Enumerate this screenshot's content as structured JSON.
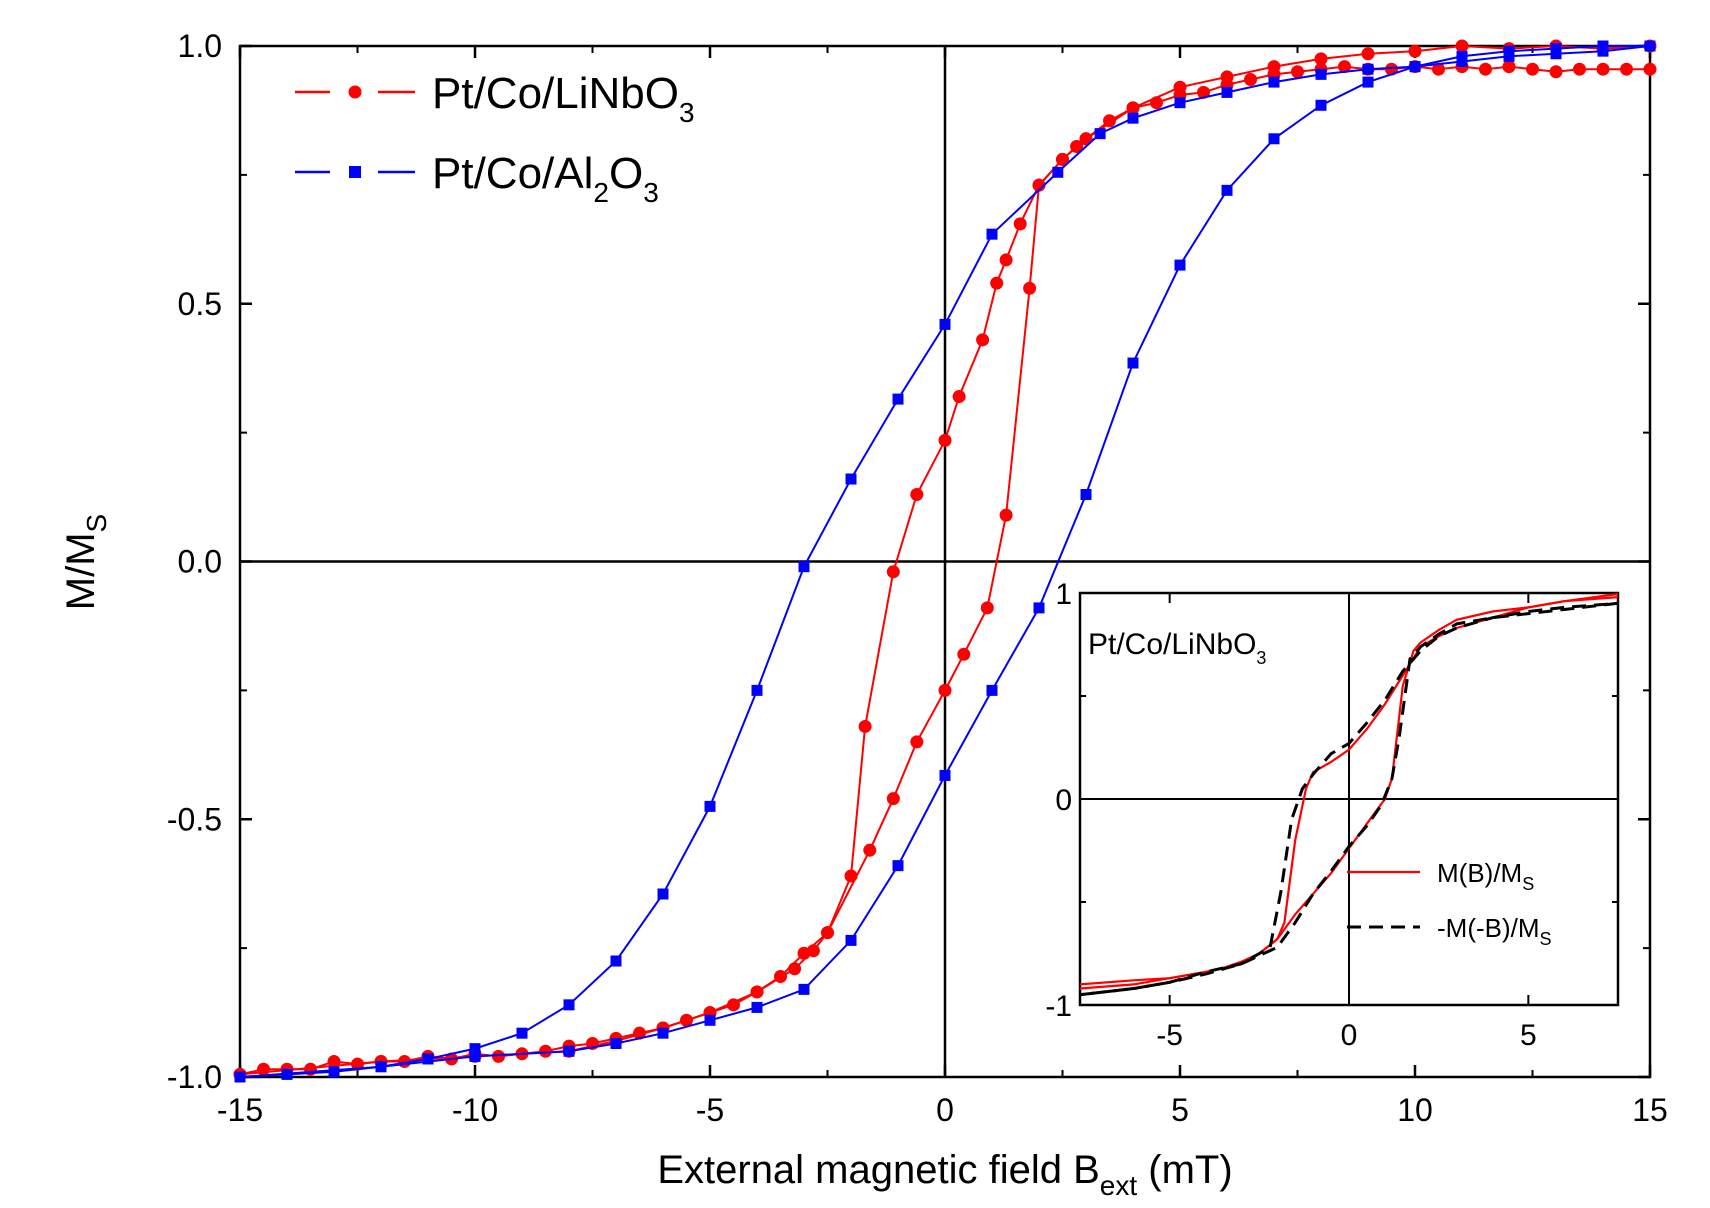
{
  "chart_data": {
    "type": "line",
    "xlabel_main": "External magnetic field B",
    "xlabel_sub": "ext",
    "xlabel_unit": " (mT)",
    "ylabel_main": "M/M",
    "ylabel_sub": "S",
    "xlim": [
      -15,
      15
    ],
    "ylim": [
      -1,
      1
    ],
    "xticks": [
      "-15",
      "-10",
      "-5",
      "0",
      "5",
      "10",
      "15"
    ],
    "yticks": [
      "-1.0",
      "-0.5",
      "0.0",
      "0.5",
      "1.0"
    ],
    "legend": [
      {
        "p1": "Pt/Co/LiNbO",
        "s1": "3",
        "p2": ""
      },
      {
        "p1": "Pt/Co/Al",
        "s1": "2",
        "p2": "O",
        "s2": "3"
      }
    ],
    "series": [
      {
        "name": "Pt/Co/LiNbO3",
        "color": "#ff0000",
        "marker": "circle",
        "branch_down": [
          [
            15,
            0.955
          ],
          [
            14.5,
            0.955
          ],
          [
            14,
            0.955
          ],
          [
            13.5,
            0.955
          ],
          [
            13,
            0.95
          ],
          [
            12.5,
            0.955
          ],
          [
            12,
            0.96
          ],
          [
            11.5,
            0.955
          ],
          [
            11,
            0.96
          ],
          [
            10.5,
            0.955
          ],
          [
            10,
            0.96
          ],
          [
            9.5,
            0.955
          ],
          [
            9,
            0.955
          ],
          [
            8.5,
            0.96
          ],
          [
            8,
            0.955
          ],
          [
            7.5,
            0.95
          ],
          [
            7,
            0.945
          ],
          [
            6.5,
            0.935
          ],
          [
            6,
            0.925
          ],
          [
            5.5,
            0.91
          ],
          [
            5,
            0.905
          ],
          [
            4.5,
            0.89
          ],
          [
            4,
            0.88
          ],
          [
            3.5,
            0.855
          ],
          [
            3,
            0.82
          ],
          [
            2.8,
            0.805
          ],
          [
            2.5,
            0.78
          ],
          [
            2,
            0.73
          ],
          [
            1.6,
            0.655
          ],
          [
            1.3,
            0.585
          ],
          [
            1.1,
            0.54
          ],
          [
            0.8,
            0.43
          ],
          [
            0.3,
            0.32
          ],
          [
            0,
            0.235
          ],
          [
            -0.6,
            0.13
          ],
          [
            -1.1,
            -0.02
          ],
          [
            -1.7,
            -0.32
          ],
          [
            -2,
            -0.61
          ],
          [
            -2.5,
            -0.72
          ],
          [
            -3,
            -0.76
          ],
          [
            -3.5,
            -0.805
          ],
          [
            -4,
            -0.835
          ],
          [
            -4.5,
            -0.86
          ],
          [
            -5,
            -0.875
          ],
          [
            -5.5,
            -0.89
          ],
          [
            -6,
            -0.905
          ],
          [
            -6.5,
            -0.915
          ],
          [
            -7,
            -0.925
          ],
          [
            -7.5,
            -0.935
          ],
          [
            -8,
            -0.94
          ],
          [
            -8.5,
            -0.95
          ],
          [
            -9,
            -0.955
          ],
          [
            -9.5,
            -0.96
          ],
          [
            -10,
            -0.955
          ],
          [
            -10.5,
            -0.965
          ],
          [
            -11,
            -0.96
          ],
          [
            -11.5,
            -0.97
          ],
          [
            -12,
            -0.97
          ],
          [
            -12.5,
            -0.975
          ],
          [
            -13,
            -0.97
          ],
          [
            -13.5,
            -0.985
          ],
          [
            -14,
            -0.985
          ],
          [
            -14.5,
            -0.985
          ],
          [
            -15,
            -0.995
          ]
        ],
        "branch_up": [
          [
            -15,
            -0.995
          ],
          [
            -12,
            -0.97
          ],
          [
            -10,
            -0.96
          ],
          [
            -8,
            -0.95
          ],
          [
            -7,
            -0.93
          ],
          [
            -6,
            -0.905
          ],
          [
            -5,
            -0.875
          ],
          [
            -4,
            -0.835
          ],
          [
            -3.2,
            -0.79
          ],
          [
            -2.8,
            -0.755
          ],
          [
            -2.5,
            -0.72
          ],
          [
            -1.6,
            -0.56
          ],
          [
            -1.1,
            -0.46
          ],
          [
            -0.6,
            -0.35
          ],
          [
            0,
            -0.25
          ],
          [
            0.4,
            -0.18
          ],
          [
            0.9,
            -0.09
          ],
          [
            1.3,
            0.09
          ],
          [
            1.8,
            0.53
          ],
          [
            2,
            0.73
          ],
          [
            2.5,
            0.78
          ],
          [
            3,
            0.82
          ],
          [
            4,
            0.88
          ],
          [
            5,
            0.92
          ],
          [
            6,
            0.94
          ],
          [
            7,
            0.96
          ],
          [
            8,
            0.975
          ],
          [
            9,
            0.985
          ],
          [
            10,
            0.99
          ],
          [
            11,
            1.0
          ],
          [
            12,
            0.995
          ],
          [
            13,
            1.0
          ],
          [
            14,
            0.995
          ],
          [
            15,
            1.0
          ]
        ]
      },
      {
        "name": "Pt/Co/Al2O3",
        "color": "#0000ff",
        "marker": "square",
        "branch_down": [
          [
            15,
            1.0
          ],
          [
            14,
            0.99
          ],
          [
            13,
            0.985
          ],
          [
            12,
            0.98
          ],
          [
            11,
            0.97
          ],
          [
            10,
            0.96
          ],
          [
            9,
            0.955
          ],
          [
            8,
            0.945
          ],
          [
            7,
            0.93
          ],
          [
            6,
            0.91
          ],
          [
            5,
            0.89
          ],
          [
            4,
            0.86
          ],
          [
            3.3,
            0.83
          ],
          [
            2.4,
            0.755
          ],
          [
            1,
            0.635
          ],
          [
            0,
            0.46
          ],
          [
            -1,
            0.315
          ],
          [
            -2,
            0.16
          ],
          [
            -3,
            -0.01
          ],
          [
            -4,
            -0.25
          ],
          [
            -5,
            -0.475
          ],
          [
            -6,
            -0.645
          ],
          [
            -7,
            -0.775
          ],
          [
            -8,
            -0.86
          ],
          [
            -9,
            -0.915
          ],
          [
            -10,
            -0.945
          ],
          [
            -11,
            -0.965
          ],
          [
            -12,
            -0.98
          ],
          [
            -13,
            -0.99
          ],
          [
            -14,
            -0.995
          ],
          [
            -15,
            -1.0
          ]
        ],
        "branch_up": [
          [
            -15,
            -1.0
          ],
          [
            -12,
            -0.98
          ],
          [
            -10,
            -0.96
          ],
          [
            -8,
            -0.95
          ],
          [
            -7,
            -0.935
          ],
          [
            -6,
            -0.915
          ],
          [
            -5,
            -0.89
          ],
          [
            -4,
            -0.865
          ],
          [
            -3,
            -0.83
          ],
          [
            -2,
            -0.735
          ],
          [
            -1,
            -0.59
          ],
          [
            0,
            -0.415
          ],
          [
            1,
            -0.25
          ],
          [
            2,
            -0.09
          ],
          [
            3,
            0.13
          ],
          [
            4,
            0.385
          ],
          [
            5,
            0.575
          ],
          [
            6,
            0.72
          ],
          [
            7,
            0.82
          ],
          [
            8,
            0.885
          ],
          [
            9,
            0.93
          ],
          [
            10,
            0.96
          ],
          [
            11,
            0.98
          ],
          [
            12,
            0.99
          ],
          [
            13,
            0.995
          ],
          [
            14,
            1.0
          ],
          [
            15,
            1.0
          ]
        ]
      }
    ],
    "inset": {
      "title_main": "Pt/Co/LiNbO",
      "title_sub": "3",
      "xlim": [
        -7.5,
        7.5
      ],
      "ylim": [
        -1,
        1
      ],
      "xticks": [
        "-5",
        "0",
        "5"
      ],
      "yticks": [
        "-1",
        "0",
        "1"
      ],
      "legend": [
        {
          "main": "M(B)/M",
          "sub": "S"
        },
        {
          "main": "-M(-B)/M",
          "sub": "S"
        }
      ],
      "series": [
        {
          "name": "M(B)/Ms",
          "color": "#ff0000",
          "style": "solid",
          "points": [
            [
              7.5,
              0.995
            ],
            [
              6,
              0.96
            ],
            [
              5,
              0.93
            ],
            [
              4,
              0.91
            ],
            [
              3,
              0.87
            ],
            [
              2.5,
              0.82
            ],
            [
              2,
              0.76
            ],
            [
              1.8,
              0.72
            ],
            [
              1.5,
              0.55
            ],
            [
              1.2,
              0.1
            ],
            [
              1,
              0.0
            ],
            [
              0.5,
              -0.12
            ],
            [
              0,
              -0.24
            ],
            [
              -0.5,
              -0.36
            ],
            [
              -1,
              -0.46
            ],
            [
              -1.5,
              -0.56
            ],
            [
              -2,
              -0.68
            ],
            [
              -2.5,
              -0.75
            ],
            [
              -3,
              -0.79
            ],
            [
              -3.5,
              -0.82
            ],
            [
              -4,
              -0.84
            ],
            [
              -5,
              -0.87
            ],
            [
              -6,
              -0.88
            ],
            [
              -7.5,
              -0.9
            ]
          ],
          "points2": [
            [
              -7.5,
              -0.92
            ],
            [
              -6,
              -0.9
            ],
            [
              -5,
              -0.87
            ],
            [
              -4,
              -0.84
            ],
            [
              -3,
              -0.8
            ],
            [
              -2.5,
              -0.75
            ],
            [
              -2,
              -0.68
            ],
            [
              -1.8,
              -0.6
            ],
            [
              -1.5,
              -0.2
            ],
            [
              -1.2,
              0.05
            ],
            [
              -1,
              0.13
            ],
            [
              -0.5,
              0.18
            ],
            [
              0,
              0.24
            ],
            [
              0.5,
              0.34
            ],
            [
              1,
              0.46
            ],
            [
              1.5,
              0.6
            ],
            [
              2,
              0.74
            ],
            [
              2.5,
              0.79
            ],
            [
              3,
              0.83
            ],
            [
              4,
              0.88
            ],
            [
              5,
              0.93
            ],
            [
              6,
              0.96
            ],
            [
              7.5,
              0.98
            ]
          ]
        },
        {
          "name": "-M(-B)/Ms",
          "color": "#000000",
          "style": "dashed",
          "points": [
            [
              7.5,
              0.95
            ],
            [
              6,
              0.92
            ],
            [
              5,
              0.9
            ],
            [
              4,
              0.88
            ],
            [
              3,
              0.85
            ],
            [
              2.5,
              0.8
            ],
            [
              2,
              0.74
            ],
            [
              1.7,
              0.68
            ],
            [
              1.4,
              0.3
            ],
            [
              1.2,
              0.1
            ],
            [
              0.9,
              -0.03
            ],
            [
              0.5,
              -0.13
            ],
            [
              0,
              -0.23
            ],
            [
              -0.5,
              -0.35
            ],
            [
              -1,
              -0.46
            ],
            [
              -1.5,
              -0.6
            ],
            [
              -2,
              -0.72
            ],
            [
              -2.5,
              -0.76
            ],
            [
              -3,
              -0.8
            ],
            [
              -4,
              -0.85
            ],
            [
              -5,
              -0.89
            ],
            [
              -6,
              -0.92
            ],
            [
              -7.5,
              -0.95
            ]
          ],
          "points2": [
            [
              -7.5,
              -0.95
            ],
            [
              -6,
              -0.92
            ],
            [
              -5,
              -0.89
            ],
            [
              -4,
              -0.84
            ],
            [
              -3,
              -0.8
            ],
            [
              -2.2,
              -0.72
            ],
            [
              -1.9,
              -0.45
            ],
            [
              -1.6,
              -0.1
            ],
            [
              -1.3,
              0.05
            ],
            [
              -1,
              0.12
            ],
            [
              -0.5,
              0.22
            ],
            [
              0,
              0.27
            ],
            [
              0.5,
              0.37
            ],
            [
              1,
              0.48
            ],
            [
              1.5,
              0.62
            ],
            [
              2,
              0.72
            ],
            [
              2.5,
              0.79
            ],
            [
              3,
              0.83
            ],
            [
              4,
              0.88
            ],
            [
              5,
              0.91
            ],
            [
              6,
              0.93
            ],
            [
              7.5,
              0.95
            ]
          ]
        }
      ]
    }
  }
}
